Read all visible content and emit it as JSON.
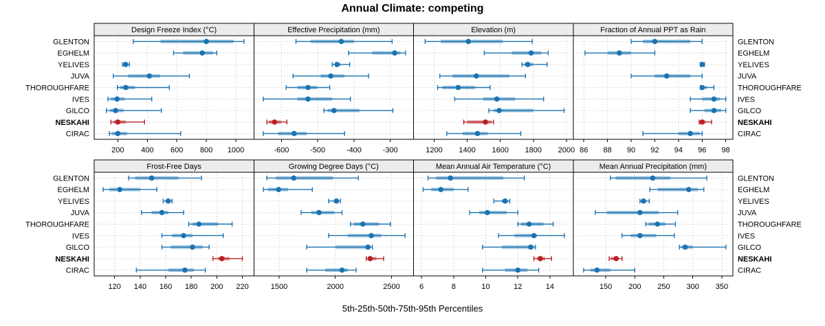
{
  "title": "Annual Climate: competing",
  "caption": "5th-25th-50th-75th-95th Percentiles",
  "colors": {
    "series_blue": "#1b73b1",
    "highlight_red": "#b82025",
    "strip_bg": "#ececec",
    "grid": "#bdbdbd",
    "panel_border": "#000000",
    "text": "#000000"
  },
  "sites": [
    "GLENTON",
    "EGHELM",
    "YELIVES",
    "JUVA",
    "THOROUGHFARE",
    "IVES",
    "GILCO",
    "NESKAHI",
    "CIRAC"
  ],
  "highlight_site": "NESKAHI",
  "chart_data": {
    "type": "percentile-dotplot",
    "subtype": "trellis 2 rows x 4 cols, one row per site, dot = median, thick band = 25th-75th, whisker caps = 5th/95th",
    "percentile_labels": [
      "5th",
      "25th",
      "50th",
      "75th",
      "95th"
    ],
    "legend_position": "none",
    "grid": "dotted horizontal per site and vertical per tick",
    "panels": [
      {
        "title": "Design Freeze Index (°C)",
        "row": 0,
        "col": 0,
        "ticks": [
          200,
          400,
          600,
          800,
          1000
        ],
        "xlim": [
          40,
          1122
        ],
        "values": {
          "GLENTON": [
            305,
            490,
            800,
            985,
            1055
          ],
          "EGHELM": [
            578,
            643,
            772,
            845,
            871
          ],
          "YELIVES": [
            233,
            244,
            253,
            264,
            278
          ],
          "JUVA": [
            169,
            270,
            414,
            487,
            685
          ],
          "THOROUGHFARE": [
            197,
            216,
            254,
            316,
            549
          ],
          "IVES": [
            133,
            153,
            195,
            246,
            430
          ],
          "GILCO": [
            123,
            146,
            185,
            239,
            495
          ],
          "NESKAHI": [
            153,
            172,
            200,
            254,
            381
          ],
          "CIRAC": [
            143,
            161,
            200,
            262,
            626
          ]
        }
      },
      {
        "title": "Effective Precipitation (mm)",
        "row": 0,
        "col": 1,
        "ticks": [
          -600,
          -500,
          -400,
          -300
        ],
        "xlim": [
          -676,
          -236
        ],
        "values": {
          "GLENTON": [
            -560,
            -520,
            -435,
            -400,
            -295
          ],
          "EGHELM": [
            -415,
            -350,
            -288,
            -272,
            -258
          ],
          "YELIVES": [
            -460,
            -452,
            -447,
            -437,
            -412
          ],
          "JUVA": [
            -568,
            -492,
            -464,
            -426,
            -360
          ],
          "THOROUGHFARE": [
            -587,
            -556,
            -527,
            -502,
            -467
          ],
          "IVES": [
            -650,
            -556,
            -527,
            -460,
            -410
          ],
          "GILCO": [
            -483,
            -473,
            -455,
            -385,
            -293
          ],
          "NESKAHI": [
            -640,
            -634,
            -619,
            -601,
            -585
          ],
          "CIRAC": [
            -650,
            -610,
            -565,
            -530,
            -426
          ]
        }
      },
      {
        "title": "Elevation (m)",
        "row": 0,
        "col": 2,
        "ticks": [
          1200,
          1400,
          1600,
          1800,
          2000
        ],
        "xlim": [
          1075,
          2041
        ],
        "values": {
          "GLENTON": [
            1145,
            1240,
            1407,
            1615,
            1793
          ],
          "EGHELM": [
            1503,
            1669,
            1786,
            1848,
            1890
          ],
          "YELIVES": [
            1731,
            1745,
            1766,
            1800,
            1883
          ],
          "JUVA": [
            1234,
            1310,
            1455,
            1655,
            1752
          ],
          "THOROUGHFARE": [
            1221,
            1248,
            1345,
            1448,
            1538
          ],
          "IVES": [
            1324,
            1497,
            1579,
            1690,
            1862
          ],
          "GILCO": [
            1531,
            1559,
            1593,
            1800,
            1986
          ],
          "NESKAHI": [
            1379,
            1400,
            1510,
            1545,
            1559
          ],
          "CIRAC": [
            1276,
            1372,
            1462,
            1524,
            1724
          ]
        }
      },
      {
        "title": "Fraction of Annual PPT as Rain",
        "row": 0,
        "col": 3,
        "ticks": [
          86,
          88,
          90,
          92,
          94,
          96,
          98
        ],
        "xlim": [
          85.1,
          98.6
        ],
        "values": {
          "GLENTON": [
            90,
            91,
            92,
            95,
            96
          ],
          "EGHELM": [
            86.1,
            88,
            89,
            90,
            92
          ],
          "YELIVES": [
            95.85,
            95.95,
            96,
            96.1,
            96.2
          ],
          "JUVA": [
            90,
            92,
            93,
            95,
            96
          ],
          "THOROUGHFARE": [
            95.85,
            95.95,
            96,
            96.4,
            97
          ],
          "IVES": [
            95,
            96,
            97,
            97.5,
            98
          ],
          "GILCO": [
            95,
            96.2,
            97,
            97.6,
            98
          ],
          "NESKAHI": [
            95.75,
            95.9,
            96,
            96.3,
            96.8
          ],
          "CIRAC": [
            91,
            94,
            95,
            95.8,
            96
          ]
        }
      },
      {
        "title": "Frost-Free Days",
        "row": 1,
        "col": 0,
        "ticks": [
          120,
          140,
          160,
          180,
          200,
          220
        ],
        "xlim": [
          104,
          229
        ],
        "values": {
          "GLENTON": [
            131,
            136,
            149,
            170,
            188
          ],
          "EGHELM": [
            111,
            116,
            124,
            140,
            153
          ],
          "YELIVES": [
            158,
            160,
            162,
            163.5,
            165
          ],
          "JUVA": [
            141,
            149,
            157,
            162,
            174
          ],
          "THOROUGHFARE": [
            178,
            181,
            186,
            201,
            212
          ],
          "IVES": [
            157,
            165,
            174,
            181,
            205
          ],
          "GILCO": [
            157,
            164,
            181,
            189,
            194
          ],
          "NESKAHI": [
            197,
            201,
            204,
            210,
            220
          ],
          "CIRAC": [
            137,
            162,
            175,
            182,
            191
          ]
        }
      },
      {
        "title": "Growing Degree Days (°C)",
        "row": 1,
        "col": 1,
        "ticks": [
          1500,
          2000,
          2500
        ],
        "xlim": [
          1275,
          2696
        ],
        "values": {
          "GLENTON": [
            1390,
            1470,
            1630,
            1980,
            2205
          ],
          "EGHELM": [
            1360,
            1400,
            1495,
            1580,
            1795
          ],
          "YELIVES": [
            1940,
            1985,
            2010,
            2030,
            2045
          ],
          "JUVA": [
            1695,
            1785,
            1855,
            1990,
            2060
          ],
          "THOROUGHFARE": [
            2135,
            2165,
            2245,
            2390,
            2490
          ],
          "IVES": [
            1940,
            2110,
            2320,
            2410,
            2620
          ],
          "GILCO": [
            1745,
            2000,
            2290,
            2315,
            2330
          ],
          "NESKAHI": [
            2275,
            2295,
            2310,
            2365,
            2430
          ],
          "CIRAC": [
            1745,
            1910,
            2060,
            2110,
            2185
          ]
        }
      },
      {
        "title": "Mean Annual Air Temperature (°C)",
        "row": 1,
        "col": 2,
        "ticks": [
          6,
          8,
          10,
          12,
          14
        ],
        "xlim": [
          5.5,
          15.45
        ],
        "values": {
          "GLENTON": [
            6.4,
            6.9,
            7.8,
            11.1,
            12.4
          ],
          "EGHELM": [
            6.1,
            6.6,
            7.2,
            8.0,
            8.9
          ],
          "YELIVES": [
            10.5,
            11.0,
            11.2,
            11.4,
            11.5
          ],
          "JUVA": [
            9.0,
            9.6,
            10.1,
            11.3,
            12.0
          ],
          "THOROUGHFARE": [
            12.0,
            12.2,
            12.7,
            13.6,
            14.2
          ],
          "IVES": [
            10.8,
            11.8,
            13.0,
            13.2,
            14.9
          ],
          "GILCO": [
            9.8,
            11.0,
            12.8,
            13.0,
            13.1
          ],
          "NESKAHI": [
            13.0,
            13.2,
            13.4,
            13.7,
            14.1
          ],
          "CIRAC": [
            9.8,
            11.2,
            12.0,
            12.6,
            13.3
          ]
        }
      },
      {
        "title": "Mean Annual Precipitation (mm)",
        "row": 1,
        "col": 3,
        "ticks": [
          150,
          200,
          250,
          300,
          350
        ],
        "xlim": [
          94,
          369
        ],
        "values": {
          "GLENTON": [
            158,
            167,
            231,
            261,
            324
          ],
          "EGHELM": [
            226,
            240,
            293,
            309,
            319
          ],
          "YELIVES": [
            209,
            212,
            215,
            220,
            225
          ],
          "JUVA": [
            132,
            152,
            209,
            241,
            274
          ],
          "THOROUGHFARE": [
            219,
            224,
            239,
            253,
            270
          ],
          "IVES": [
            178,
            193,
            209,
            237,
            268
          ],
          "GILCO": [
            277,
            280,
            287,
            300,
            357
          ],
          "NESKAHI": [
            156,
            159,
            168,
            172,
            178
          ],
          "CIRAC": [
            112,
            124,
            135,
            158,
            200
          ]
        }
      }
    ]
  }
}
